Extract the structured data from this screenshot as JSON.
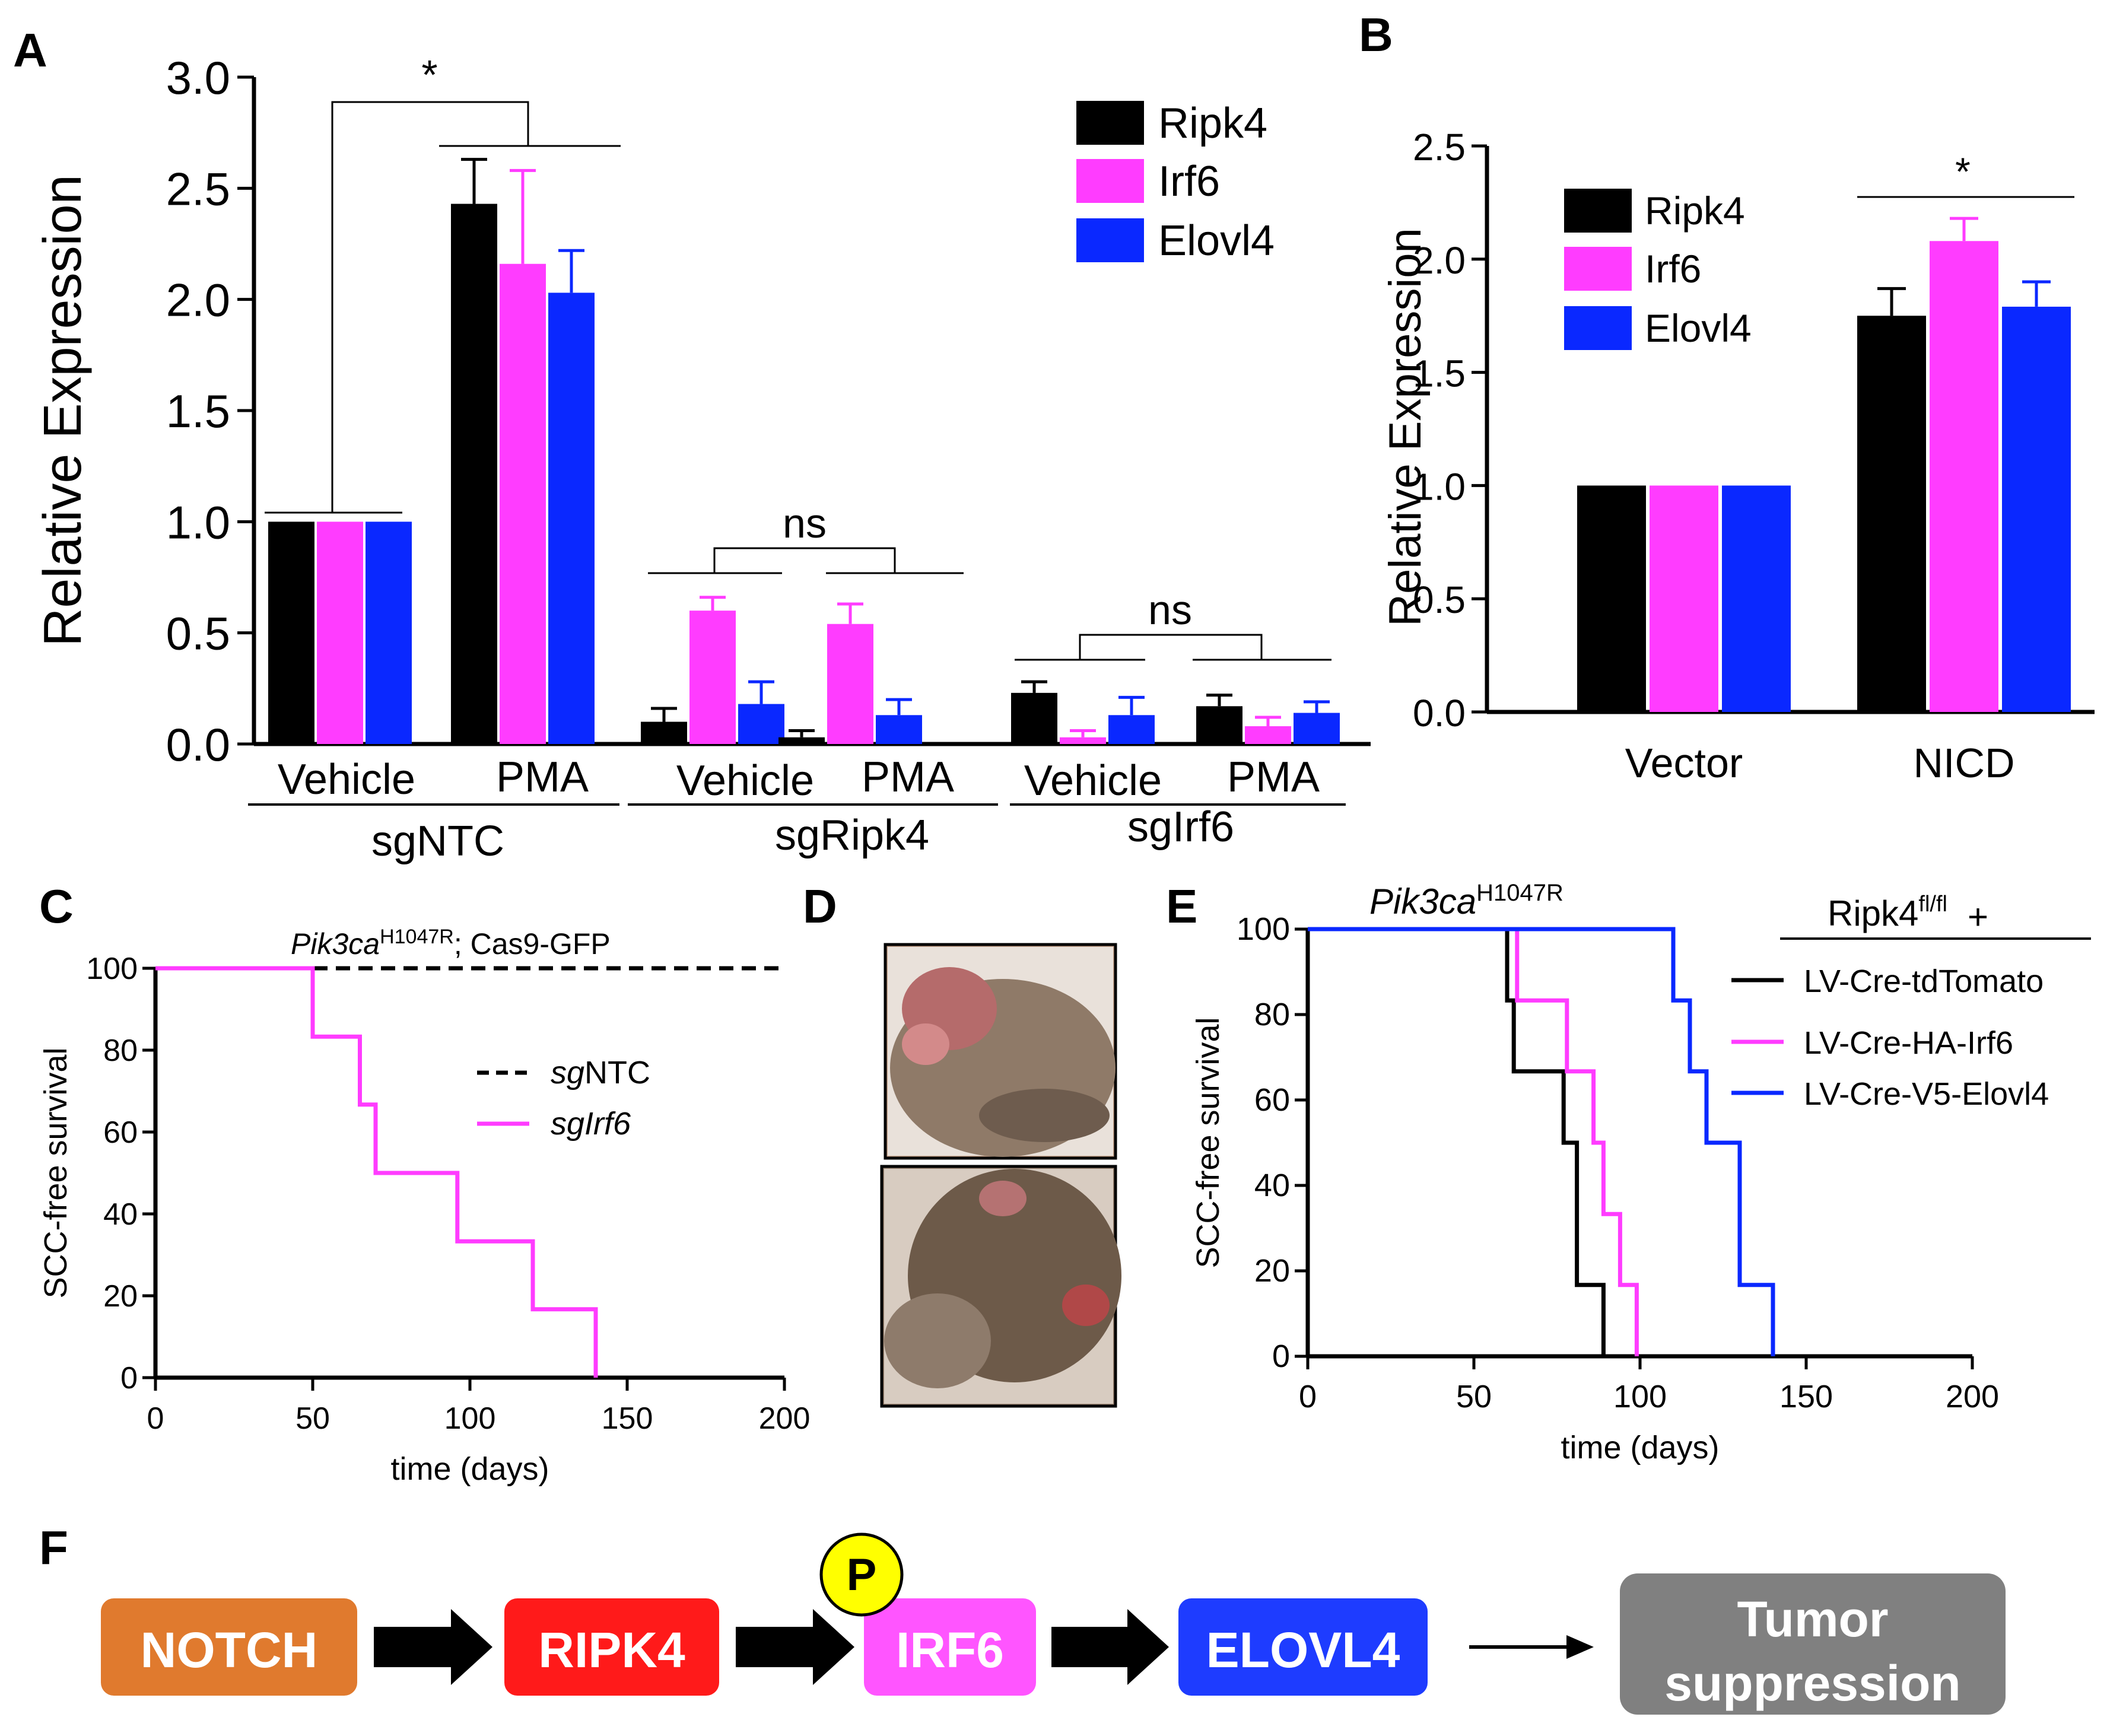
{
  "colors": {
    "ripk4": "#000000",
    "irf6": "#FF3CFF",
    "elovl4": "#0A28FF",
    "notch": "#E07A2E",
    "ripk4_box": "#FF1A1A",
    "irf6_box": "#FF55FF",
    "elovl4_box": "#1E3CFF",
    "tumor_box": "#808080",
    "phospho": "#FFFF00"
  },
  "panels": {
    "A": "A",
    "B": "B",
    "C": "C",
    "D": "D",
    "E": "E",
    "F": "F"
  },
  "chart_data": [
    {
      "id": "A",
      "type": "bar",
      "ylabel": "Relative Expression",
      "ylim": [
        0,
        3.0
      ],
      "yticks": [
        "0.0",
        "0.5",
        "1.0",
        "1.5",
        "2.0",
        "2.5",
        "3.0"
      ],
      "legend": [
        "Ripk4",
        "Irf6",
        "Elovl4"
      ],
      "legend_position": "top-right",
      "groups": [
        {
          "label": "Vehicle",
          "values": [
            1.0,
            1.0,
            1.0
          ],
          "errors": [
            0,
            0,
            0
          ]
        },
        {
          "label": "PMA",
          "values": [
            2.43,
            2.16,
            2.03
          ],
          "errors": [
            0.2,
            0.42,
            0.19
          ]
        },
        {
          "label": "Vehicle",
          "values": [
            0.1,
            0.6,
            0.18
          ],
          "errors": [
            0.06,
            0.06,
            0.1
          ]
        },
        {
          "label": "PMA",
          "values": [
            0.03,
            0.54,
            0.13
          ],
          "errors": [
            0.03,
            0.09,
            0.07
          ]
        },
        {
          "label": "Vehicle",
          "values": [
            0.23,
            0.03,
            0.13
          ],
          "errors": [
            0.05,
            0.03,
            0.08
          ]
        },
        {
          "label": "PMA",
          "values": [
            0.17,
            0.08,
            0.14
          ],
          "errors": [
            0.05,
            0.04,
            0.05
          ]
        }
      ],
      "supergroups": [
        "sgNTC",
        "sgRipk4",
        "sgIrf6"
      ],
      "significance": [
        "*",
        "ns",
        "ns"
      ]
    },
    {
      "id": "B",
      "type": "bar",
      "ylabel": "Relative Expression",
      "ylim": [
        0,
        2.5
      ],
      "yticks": [
        "0.0",
        "0.5",
        "1.0",
        "1.5",
        "2.0",
        "2.5"
      ],
      "legend": [
        "Ripk4",
        "Irf6",
        "Elovl4"
      ],
      "legend_position": "top-left",
      "groups": [
        {
          "label": "Vector",
          "values": [
            1.0,
            1.0,
            1.0
          ],
          "errors": [
            0,
            0,
            0
          ]
        },
        {
          "label": "NICD",
          "values": [
            1.75,
            2.08,
            1.79
          ],
          "errors": [
            0.12,
            0.1,
            0.11
          ]
        }
      ],
      "significance": [
        "*"
      ]
    },
    {
      "id": "C",
      "type": "line",
      "subtype": "kaplan-meier",
      "title_italic": "Pik3ca",
      "title_sup": "H1047R",
      "title_rest": "; Cas9-GFP",
      "xlabel": "time (days)",
      "ylabel": "SCC-free survival",
      "xlim": [
        0,
        200
      ],
      "ylim": [
        0,
        100
      ],
      "xticks": [
        "0",
        "50",
        "100",
        "150",
        "200"
      ],
      "yticks": [
        "0",
        "20",
        "40",
        "60",
        "80",
        "100"
      ],
      "series": [
        {
          "name_italic": "sg",
          "name_rest": "NTC",
          "style": "dashed",
          "color": "#000000",
          "steps": [
            [
              0,
              100
            ],
            [
              200,
              100
            ]
          ]
        },
        {
          "name_italic": "sgIrf6",
          "name_rest": "",
          "style": "solid",
          "color": "#FF3CFF",
          "steps": [
            [
              0,
              100
            ],
            [
              50,
              83.3
            ],
            [
              65,
              66.7
            ],
            [
              70,
              50
            ],
            [
              96,
              33.3
            ],
            [
              120,
              16.7
            ],
            [
              140,
              0
            ]
          ]
        }
      ]
    },
    {
      "id": "E",
      "type": "line",
      "subtype": "kaplan-meier",
      "title_italic": "Pik3ca",
      "title_sup": "H1047R",
      "legend_header": "Ripk4",
      "legend_header_sup": "fl/fl",
      "legend_header_plus": "+",
      "xlabel": "time (days)",
      "ylabel": "SCC-free survival",
      "xlim": [
        0,
        200
      ],
      "ylim": [
        0,
        100
      ],
      "xticks": [
        "0",
        "50",
        "100",
        "150",
        "200"
      ],
      "yticks": [
        "0",
        "20",
        "40",
        "60",
        "80",
        "100"
      ],
      "series": [
        {
          "name": "LV-Cre-tdTomato",
          "color": "#000000",
          "steps": [
            [
              0,
              100
            ],
            [
              60,
              83.3
            ],
            [
              62,
              66.7
            ],
            [
              77,
              50
            ],
            [
              81,
              16.7
            ],
            [
              89,
              0
            ]
          ]
        },
        {
          "name": "LV-Cre-HA-Irf6",
          "color": "#FF3CFF",
          "steps": [
            [
              0,
              100
            ],
            [
              63,
              83.3
            ],
            [
              78,
              66.7
            ],
            [
              86,
              50
            ],
            [
              89,
              33.3
            ],
            [
              94,
              16.7
            ],
            [
              99,
              0
            ]
          ]
        },
        {
          "name": "LV-Cre-V5-Elovl4",
          "color": "#0A28FF",
          "steps": [
            [
              0,
              100
            ],
            [
              110,
              83.3
            ],
            [
              115,
              66.7
            ],
            [
              120,
              50
            ],
            [
              130,
              16.7
            ],
            [
              140,
              0
            ]
          ]
        }
      ]
    }
  ],
  "pathway": {
    "nodes": [
      "NOTCH",
      "RIPK4",
      "IRF6",
      "ELOVL4"
    ],
    "phospho": "P",
    "outcome_line1": "Tumor",
    "outcome_line2": "suppression"
  }
}
